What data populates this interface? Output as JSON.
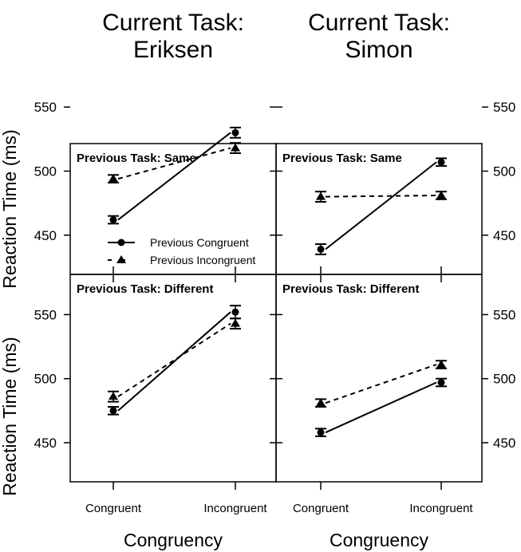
{
  "chart_data": {
    "type": "line",
    "column_titles": [
      [
        "Current Task:",
        "Eriksen"
      ],
      [
        "Current Task:",
        "Simon"
      ]
    ],
    "ylabel": "Reaction Time (ms)",
    "xlabel": "Congruency",
    "categories": [
      "Congruent",
      "Incongruent"
    ],
    "yticks": [
      "450",
      "500",
      "550"
    ],
    "ylim": [
      420,
      560
    ],
    "grid": false,
    "legend": {
      "placement": "bottom-right of top-left panel",
      "entries": [
        "Previous Congruent",
        "Previous Incongruent"
      ]
    },
    "colors": {
      "ink": "#000000"
    },
    "panels": [
      {
        "title": "Previous Task: Same",
        "column": 0,
        "row": 0,
        "series": [
          {
            "name": "Previous Congruent",
            "marker": "circle",
            "line": "solid",
            "values": [
              462,
              530
            ],
            "errors": [
              3,
              4
            ]
          },
          {
            "name": "Previous Incongruent",
            "marker": "triangle",
            "line": "dashed",
            "values": [
              494,
              518
            ],
            "errors": [
              3,
              4
            ]
          }
        ]
      },
      {
        "title": "Previous Task: Same",
        "column": 1,
        "row": 0,
        "series": [
          {
            "name": "Previous Congruent",
            "marker": "circle",
            "line": "solid",
            "values": [
              439,
              507
            ],
            "errors": [
              4,
              3
            ]
          },
          {
            "name": "Previous Incongruent",
            "marker": "triangle",
            "line": "dashed",
            "values": [
              480,
              481
            ],
            "errors": [
              4,
              3
            ]
          }
        ]
      },
      {
        "title": "Previous Task: Different",
        "column": 0,
        "row": 1,
        "series": [
          {
            "name": "Previous Congruent",
            "marker": "circle",
            "line": "solid",
            "values": [
              475,
              552
            ],
            "errors": [
              3,
              5
            ]
          },
          {
            "name": "Previous Incongruent",
            "marker": "triangle",
            "line": "dashed",
            "values": [
              486,
              543
            ],
            "errors": [
              4,
              4
            ]
          }
        ]
      },
      {
        "title": "Previous Task: Different",
        "column": 1,
        "row": 1,
        "series": [
          {
            "name": "Previous Congruent",
            "marker": "circle",
            "line": "solid",
            "values": [
              458,
              497
            ],
            "errors": [
              3,
              3
            ]
          },
          {
            "name": "Previous Incongruent",
            "marker": "triangle",
            "line": "dashed",
            "values": [
              481,
              511
            ],
            "errors": [
              3,
              3
            ]
          }
        ]
      }
    ]
  }
}
